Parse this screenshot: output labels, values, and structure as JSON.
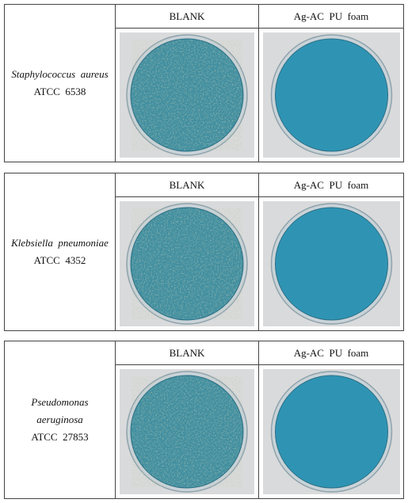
{
  "blocks": [
    {
      "organism": "Staphylococcus  aureus",
      "strain": "ATCC  6538",
      "columns": [
        "BLANK",
        "Ag-AC  PU  foam"
      ]
    },
    {
      "organism": "Klebsiella  pneumoniae",
      "strain": "ATCC  4352",
      "columns": [
        "BLANK",
        "Ag-AC  PU  foam"
      ]
    },
    {
      "organism": "Pseudomonas\naeruginosa",
      "strain": "ATCC  27853",
      "columns": [
        "BLANK",
        "Ag-AC  PU  foam"
      ]
    }
  ]
}
